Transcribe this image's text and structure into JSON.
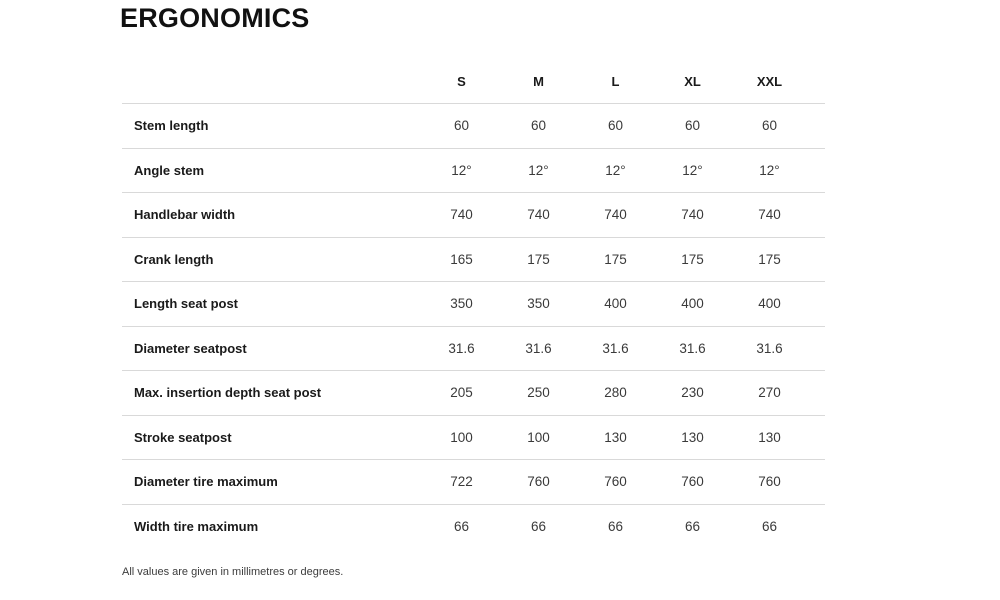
{
  "page": {
    "title": "ERGONOMICS",
    "footnote": "All values are given in millimetres or degrees."
  },
  "table": {
    "columns": [
      "S",
      "M",
      "L",
      "XL",
      "XXL"
    ],
    "rows": [
      {
        "label": "Stem length",
        "values": [
          "60",
          "60",
          "60",
          "60",
          "60"
        ]
      },
      {
        "label": "Angle stem",
        "values": [
          "12°",
          "12°",
          "12°",
          "12°",
          "12°"
        ]
      },
      {
        "label": "Handlebar width",
        "values": [
          "740",
          "740",
          "740",
          "740",
          "740"
        ]
      },
      {
        "label": "Crank length",
        "values": [
          "165",
          "175",
          "175",
          "175",
          "175"
        ]
      },
      {
        "label": "Length seat post",
        "values": [
          "350",
          "350",
          "400",
          "400",
          "400"
        ]
      },
      {
        "label": "Diameter seatpost",
        "values": [
          "31.6",
          "31.6",
          "31.6",
          "31.6",
          "31.6"
        ]
      },
      {
        "label": "Max. insertion depth seat post",
        "values": [
          "205",
          "250",
          "280",
          "230",
          "270"
        ]
      },
      {
        "label": "Stroke seatpost",
        "values": [
          "100",
          "100",
          "130",
          "130",
          "130"
        ]
      },
      {
        "label": "Diameter tire maximum",
        "values": [
          "722",
          "760",
          "760",
          "760",
          "760"
        ]
      },
      {
        "label": "Width tire maximum",
        "values": [
          "66",
          "66",
          "66",
          "66",
          "66"
        ]
      }
    ]
  },
  "colors": {
    "text_primary": "#1a1a1a",
    "text_secondary": "#3a3a3a",
    "divider": "#d9d9d9"
  }
}
